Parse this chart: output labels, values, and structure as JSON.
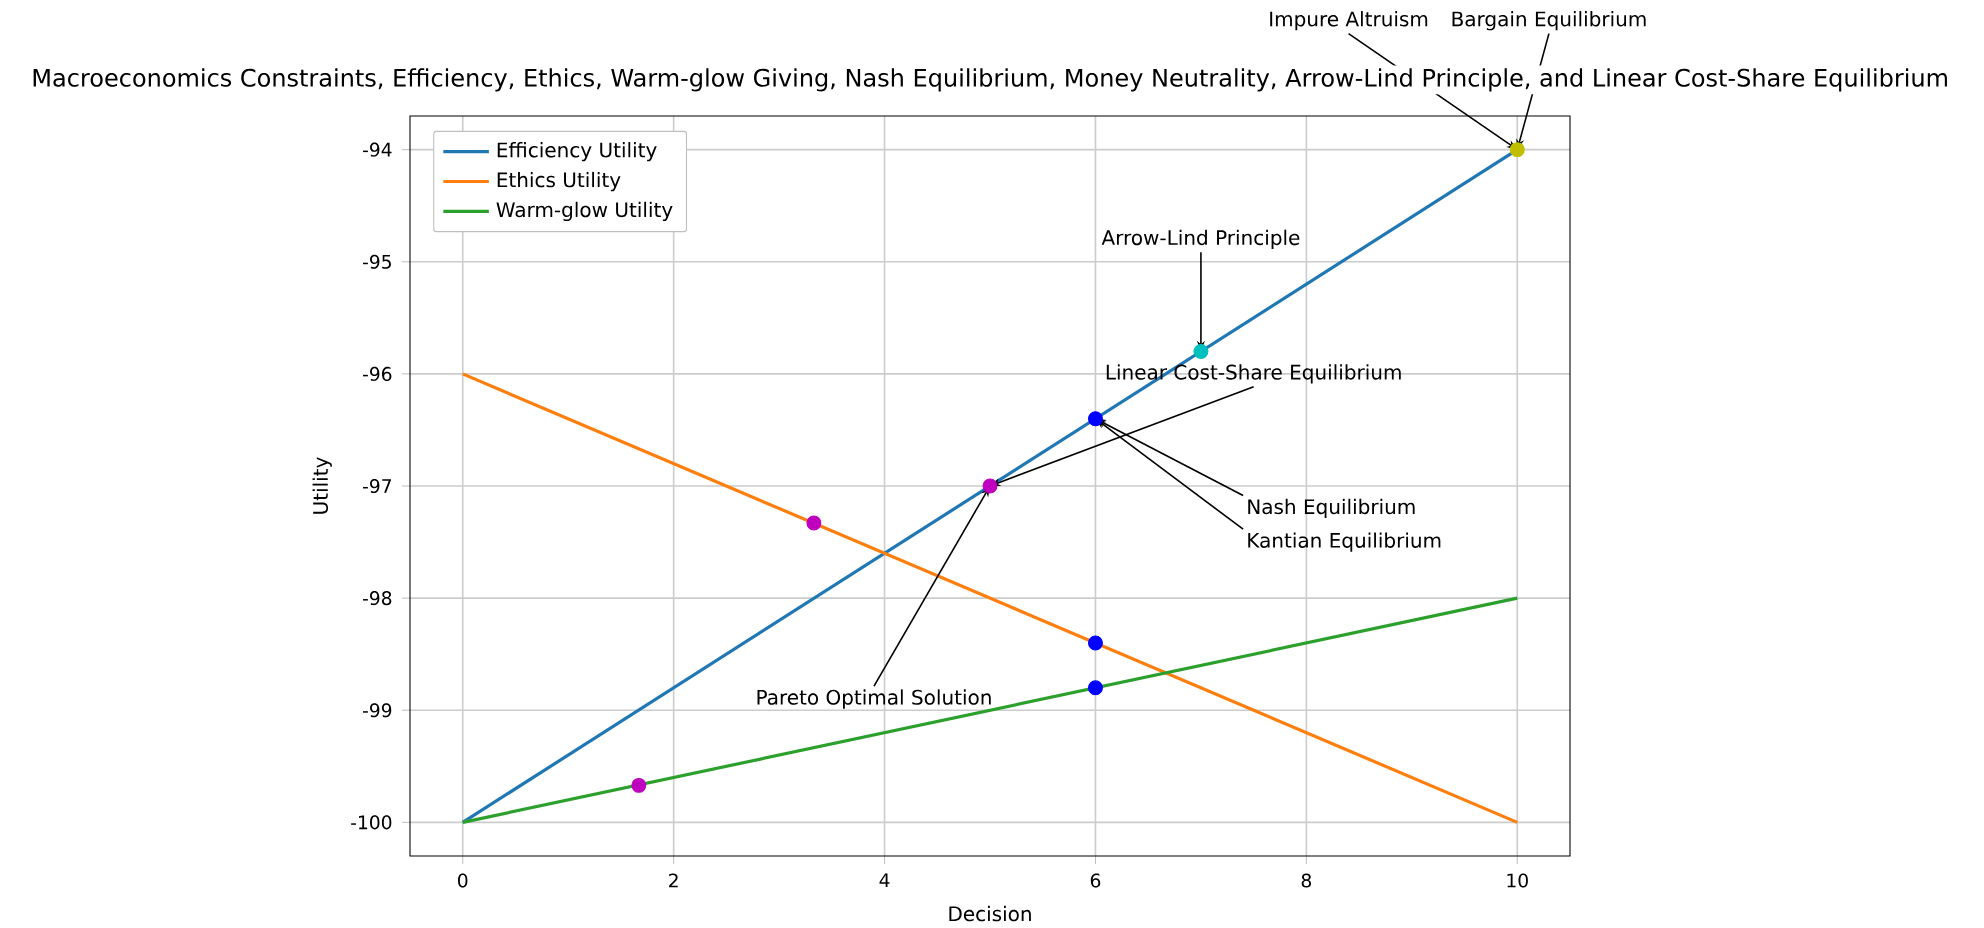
{
  "chart_data": {
    "type": "line",
    "title": "Macroeconomics Constraints, Efficiency, Ethics, Warm-glow Giving, Nash Equilibrium, Money Neutrality, Arrow-Lind Principle, and Linear Cost-Share Equilibrium",
    "xlabel": "Decision",
    "ylabel": "Utility",
    "x": [
      0,
      10
    ],
    "series": [
      {
        "name": "Efficiency Utility",
        "color": "#1f77b4",
        "values": [
          -100,
          -94
        ]
      },
      {
        "name": "Ethics Utility",
        "color": "#ff7f0e",
        "values": [
          -96,
          -100
        ]
      },
      {
        "name": "Warm-glow Utility",
        "color": "#2ca02c",
        "values": [
          -100,
          -98
        ]
      },
      {
        "type": "scatter",
        "marker": "circle",
        "x": [
          5,
          3.33,
          1.67,
          6,
          6,
          6,
          7,
          10
        ],
        "values": [
          -97,
          -97.33,
          -99.67,
          -96.4,
          -98.4,
          -98.8,
          -95.8,
          -94
        ],
        "colors": [
          "#bf00bf",
          "#bf00bf",
          "#bf00bf",
          "#0000ff",
          "#0000ff",
          "#0000ff",
          "#00bfbf",
          "#bfbf00"
        ]
      }
    ],
    "annotations": [
      {
        "text": "Impure Altruism",
        "x": 10,
        "y": -94
      },
      {
        "text": "Bargain Equilibrium",
        "x": 10,
        "y": -94
      },
      {
        "text": "Arrow-Lind Principle",
        "x": 7,
        "y": -95.8
      },
      {
        "text": "Linear Cost-Share Equilibrium",
        "x": 5,
        "y": -97
      },
      {
        "text": "Nash Equilibrium",
        "x": 6,
        "y": -96.4
      },
      {
        "text": "Kantian Equilibrium",
        "x": 6,
        "y": -96.4
      },
      {
        "text": "Pareto Optimal Solution",
        "x": 5,
        "y": -97
      }
    ],
    "xlim": [
      -0.5,
      10.5
    ],
    "ylim": [
      -100.3,
      -93.7
    ],
    "xticks": [
      0,
      2,
      4,
      6,
      8,
      10
    ],
    "yticks": [
      -100,
      -99,
      -98,
      -97,
      -96,
      -95,
      -94
    ],
    "grid": true,
    "legend": "top left",
    "line_style": "solid",
    "marker": "none"
  }
}
